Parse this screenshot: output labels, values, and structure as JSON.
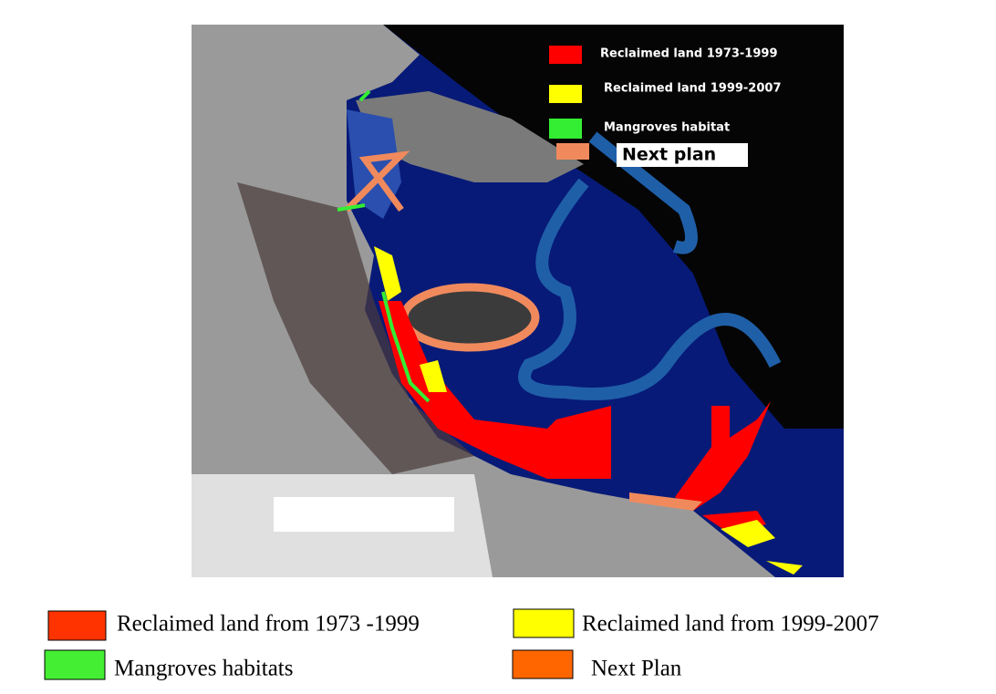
{
  "map_legend": [
    {
      "label": "Reclaimed land 1973-1999"
    },
    {
      "label": "Reclaimed land 1999-2007"
    },
    {
      "label": "Mangroves habitat"
    },
    {
      "label": "Next plan"
    }
  ],
  "figure_legend": [
    {
      "label": "Reclaimed land from 1973 -1999"
    },
    {
      "label": "Reclaimed land from 1999-2007"
    },
    {
      "label": "Mangroves habitats"
    },
    {
      "label": "Next Plan"
    }
  ]
}
